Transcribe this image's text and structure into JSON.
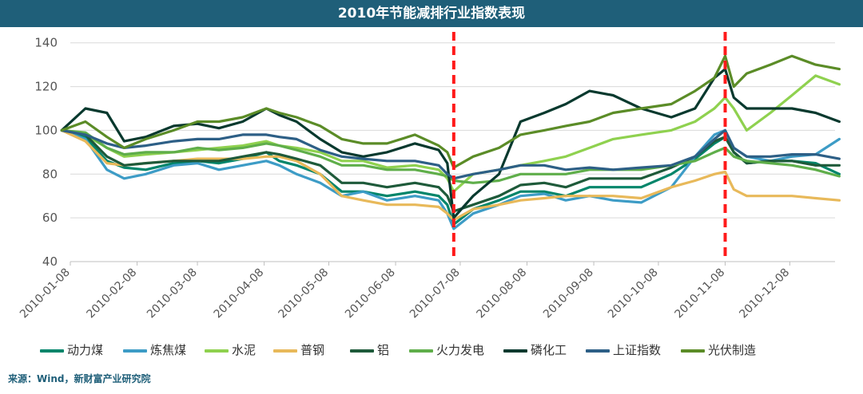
{
  "title": "2010年节能减排行业指数表现",
  "source": "来源：Wind，新财富产业研究院",
  "chart_data": {
    "type": "line",
    "title": "2010年节能减排行业指数表现",
    "ylim": [
      40,
      145
    ],
    "yticks": [
      40,
      60,
      80,
      100,
      120,
      140
    ],
    "xlim_days": [
      0,
      355
    ],
    "xticks": [
      "2010-01-08",
      "2010-02-08",
      "2010-03-08",
      "2010-04-08",
      "2010-05-08",
      "2010-06-08",
      "2010-07-08",
      "2010-08-08",
      "2010-09-08",
      "2010-10-08",
      "2010-11-08",
      "2010-12-08"
    ],
    "grid": "horizontal",
    "legend_position": "bottom",
    "vlines": [
      "2010-07-05",
      "2010-11-08"
    ],
    "x": [
      "2010-01-04",
      "2010-01-15",
      "2010-01-25",
      "2010-02-02",
      "2010-02-12",
      "2010-02-25",
      "2010-03-08",
      "2010-03-18",
      "2010-03-29",
      "2010-04-09",
      "2010-04-15",
      "2010-04-23",
      "2010-05-04",
      "2010-05-14",
      "2010-05-24",
      "2010-06-04",
      "2010-06-17",
      "2010-06-28",
      "2010-07-02",
      "2010-07-05",
      "2010-07-14",
      "2010-07-26",
      "2010-08-05",
      "2010-08-16",
      "2010-08-26",
      "2010-09-06",
      "2010-09-17",
      "2010-09-30",
      "2010-10-14",
      "2010-10-25",
      "2010-11-03",
      "2010-11-08",
      "2010-11-12",
      "2010-11-18",
      "2010-11-29",
      "2010-12-09",
      "2010-12-20",
      "2010-12-31"
    ],
    "series": [
      {
        "name": "动力煤",
        "color": "#00856a",
        "values": [
          100,
          97,
          86,
          83,
          82,
          85,
          86,
          85,
          87,
          90,
          86,
          84,
          80,
          72,
          72,
          70,
          72,
          70,
          66,
          57,
          64,
          68,
          72,
          72,
          70,
          74,
          74,
          74,
          80,
          87,
          94,
          97,
          90,
          85,
          86,
          86,
          85,
          80
        ]
      },
      {
        "name": "炼焦煤",
        "color": "#3d9cc6",
        "values": [
          100,
          96,
          82,
          78,
          80,
          84,
          85,
          82,
          84,
          86,
          84,
          80,
          76,
          70,
          72,
          68,
          70,
          68,
          62,
          55,
          62,
          66,
          70,
          71,
          68,
          70,
          68,
          67,
          74,
          88,
          98,
          100,
          92,
          88,
          86,
          88,
          89,
          96
        ]
      },
      {
        "name": "水泥",
        "color": "#8fd14f",
        "values": [
          100,
          98,
          92,
          88,
          89,
          90,
          91,
          92,
          93,
          95,
          93,
          92,
          90,
          86,
          86,
          83,
          84,
          82,
          78,
          72,
          80,
          82,
          84,
          86,
          88,
          92,
          96,
          98,
          100,
          104,
          110,
          115,
          110,
          100,
          108,
          116,
          125,
          121
        ]
      },
      {
        "name": "普钢",
        "color": "#e8b95a",
        "values": [
          100,
          95,
          85,
          84,
          85,
          86,
          87,
          87,
          87,
          88,
          88,
          86,
          80,
          70,
          68,
          66,
          66,
          65,
          62,
          59,
          64,
          66,
          68,
          69,
          70,
          70,
          70,
          69,
          74,
          77,
          80,
          81,
          73,
          70,
          70,
          70,
          69,
          68
        ]
      },
      {
        "name": "铝",
        "color": "#1e5a3a",
        "values": [
          100,
          98,
          88,
          84,
          85,
          86,
          86,
          86,
          88,
          90,
          89,
          87,
          84,
          76,
          76,
          74,
          76,
          74,
          70,
          63,
          66,
          70,
          75,
          76,
          74,
          78,
          78,
          78,
          83,
          88,
          95,
          97,
          90,
          85,
          86,
          86,
          84,
          84
        ]
      },
      {
        "name": "火力发电",
        "color": "#5fae4a",
        "values": [
          100,
          99,
          92,
          89,
          90,
          90,
          92,
          91,
          92,
          94,
          93,
          91,
          88,
          84,
          84,
          82,
          82,
          80,
          79,
          77,
          76,
          77,
          80,
          80,
          80,
          82,
          82,
          82,
          84,
          86,
          90,
          92,
          88,
          86,
          85,
          84,
          82,
          79
        ]
      },
      {
        "name": "磷化工",
        "color": "#08392e",
        "values": [
          100,
          110,
          108,
          95,
          97,
          102,
          103,
          101,
          104,
          110,
          107,
          104,
          96,
          90,
          88,
          90,
          94,
          91,
          85,
          60,
          70,
          80,
          104,
          108,
          112,
          118,
          116,
          110,
          106,
          110,
          124,
          128,
          115,
          110,
          110,
          110,
          108,
          104
        ]
      },
      {
        "name": "上证指数",
        "color": "#2d5f86",
        "values": [
          100,
          98,
          94,
          92,
          93,
          95,
          96,
          96,
          98,
          98,
          97,
          96,
          91,
          88,
          87,
          86,
          86,
          84,
          80,
          78,
          80,
          82,
          84,
          84,
          82,
          83,
          82,
          83,
          84,
          88,
          96,
          100,
          92,
          88,
          88,
          89,
          89,
          87
        ]
      },
      {
        "name": "光伏制造",
        "color": "#5b8c27",
        "values": [
          100,
          104,
          97,
          92,
          96,
          100,
          104,
          104,
          106,
          110,
          108,
          106,
          102,
          96,
          94,
          94,
          98,
          93,
          90,
          83,
          88,
          92,
          98,
          100,
          102,
          104,
          108,
          110,
          112,
          118,
          124,
          134,
          120,
          126,
          130,
          134,
          130,
          128
        ]
      }
    ]
  }
}
